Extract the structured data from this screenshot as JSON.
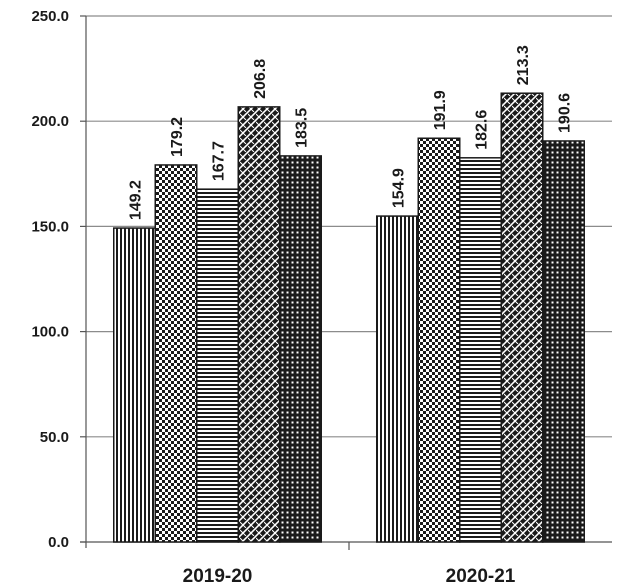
{
  "chart_data": {
    "type": "bar",
    "categories": [
      "2019-20",
      "2020-21"
    ],
    "series": [
      {
        "values": [
          149.2,
          154.9
        ],
        "pattern": "vertical-stripes"
      },
      {
        "values": [
          179.2,
          191.9
        ],
        "pattern": "checker"
      },
      {
        "values": [
          167.7,
          182.6
        ],
        "pattern": "horizontal-stripes"
      },
      {
        "values": [
          206.8,
          213.3
        ],
        "pattern": "diagonal-weave"
      },
      {
        "values": [
          183.5,
          190.6
        ],
        "pattern": "dark-grid"
      }
    ],
    "data_labels": [
      [
        "149.2",
        "179.2",
        "167.7",
        "206.8",
        "183.5"
      ],
      [
        "154.9",
        "191.9",
        "182.6",
        "213.3",
        "190.6"
      ]
    ],
    "y_ticks": [
      "0.0",
      "50.0",
      "100.0",
      "150.0",
      "200.0",
      "250.0"
    ],
    "ylim": [
      0,
      250
    ],
    "grid": true,
    "legend": "none",
    "colors": {
      "bar_ink": "#1a1a1a",
      "bar_paper": "#ffffff",
      "grid": "#8c8c8c",
      "axis": "#555555"
    }
  }
}
